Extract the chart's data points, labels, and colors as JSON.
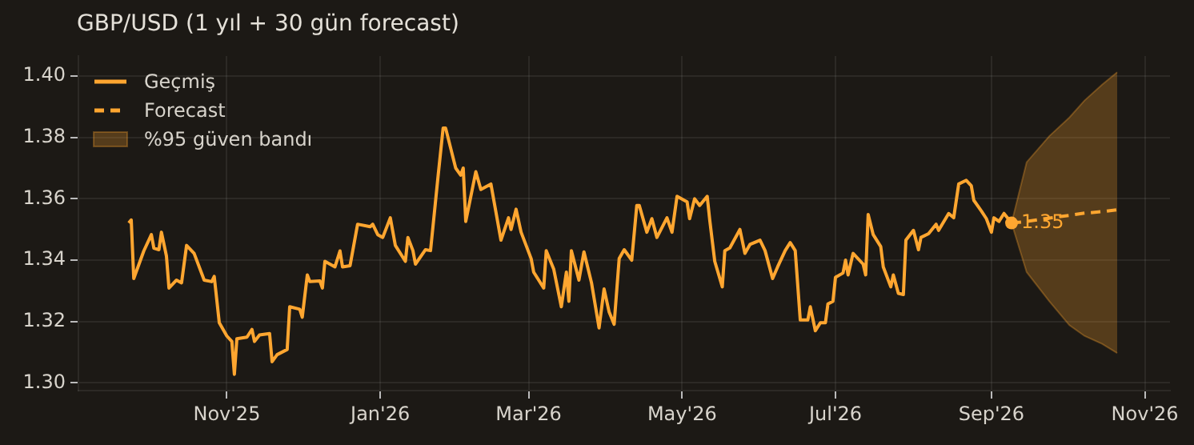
{
  "chart_data": {
    "type": "line",
    "title": "GBP/USD  (1 yıl + 30 gün forecast)",
    "grid": true,
    "legend": "top left",
    "xlim": [
      "2025-09-03",
      "2026-11-11"
    ],
    "ylim": [
      1.2975,
      1.4065
    ],
    "xticks": [
      {
        "value": "2025-11-01",
        "label": "Nov'25"
      },
      {
        "value": "2026-01-01",
        "label": "Jan'26"
      },
      {
        "value": "2026-03-01",
        "label": "Mar'26"
      },
      {
        "value": "2026-05-01",
        "label": "May'26"
      },
      {
        "value": "2026-07-01",
        "label": "Jul'26"
      },
      {
        "value": "2026-09-01",
        "label": "Sep'26"
      },
      {
        "value": "2026-11-01",
        "label": "Nov'26"
      }
    ],
    "yticks": [
      {
        "value": 1.3,
        "label": "1.30"
      },
      {
        "value": 1.32,
        "label": "1.32"
      },
      {
        "value": 1.34,
        "label": "1.34"
      },
      {
        "value": 1.36,
        "label": "1.36"
      },
      {
        "value": 1.38,
        "label": "1.38"
      },
      {
        "value": 1.4,
        "label": "1.40"
      }
    ],
    "annotations": [
      {
        "text": "1.35",
        "x": "2026-09-09",
        "y": 1.3521
      },
      "%95 güven bandı"
    ],
    "series": [
      {
        "name": "Geçmiş",
        "color": "#ffa630",
        "line_style": "solid",
        "x": [
          "2025-09-23",
          "2025-09-24",
          "2025-09-25",
          "2025-09-29",
          "2025-10-02",
          "2025-10-03",
          "2025-10-05",
          "2025-10-06",
          "2025-10-08",
          "2025-10-09",
          "2025-10-12",
          "2025-10-14",
          "2025-10-16",
          "2025-10-19",
          "2025-10-23",
          "2025-10-26",
          "2025-10-27",
          "2025-10-29",
          "2025-11-01",
          "2025-11-03",
          "2025-11-04",
          "2025-11-05",
          "2025-11-09",
          "2025-11-11",
          "2025-11-12",
          "2025-11-14",
          "2025-11-18",
          "2025-11-19",
          "2025-11-21",
          "2025-11-25",
          "2025-11-26",
          "2025-11-30",
          "2025-12-01",
          "2025-12-03",
          "2025-12-04",
          "2025-12-08",
          "2025-12-09",
          "2025-12-10",
          "2025-12-14",
          "2025-12-16",
          "2025-12-17",
          "2025-12-20",
          "2025-12-23",
          "2025-12-28",
          "2025-12-29",
          "2025-12-31",
          "2026-01-02",
          "2026-01-05",
          "2026-01-07",
          "2026-01-11",
          "2026-01-12",
          "2026-01-14",
          "2026-01-15",
          "2026-01-19",
          "2026-01-21",
          "2026-01-24",
          "2026-01-26",
          "2026-01-27",
          "2026-01-31",
          "2026-02-02",
          "2026-02-03",
          "2026-02-04",
          "2026-02-08",
          "2026-02-10",
          "2026-02-14",
          "2026-02-18",
          "2026-02-21",
          "2026-02-22",
          "2026-02-24",
          "2026-02-26",
          "2026-03-02",
          "2026-03-03",
          "2026-03-07",
          "2026-03-08",
          "2026-03-11",
          "2026-03-14",
          "2026-03-16",
          "2026-03-17",
          "2026-03-18",
          "2026-03-21",
          "2026-03-23",
          "2026-03-26",
          "2026-03-29",
          "2026-03-31",
          "2026-04-02",
          "2026-04-04",
          "2026-04-06",
          "2026-04-08",
          "2026-04-11",
          "2026-04-13",
          "2026-04-14",
          "2026-04-17",
          "2026-04-19",
          "2026-04-21",
          "2026-04-25",
          "2026-04-27",
          "2026-04-29",
          "2026-05-03",
          "2026-05-04",
          "2026-05-06",
          "2026-05-08",
          "2026-05-11",
          "2026-05-12",
          "2026-05-14",
          "2026-05-17",
          "2026-05-18",
          "2026-05-20",
          "2026-05-24",
          "2026-05-26",
          "2026-05-28",
          "2026-06-01",
          "2026-06-03",
          "2026-06-06",
          "2026-06-08",
          "2026-06-11",
          "2026-06-13",
          "2026-06-15",
          "2026-06-17",
          "2026-06-20",
          "2026-06-21",
          "2026-06-23",
          "2026-06-25",
          "2026-06-27",
          "2026-06-28",
          "2026-06-30",
          "2026-07-01",
          "2026-07-04",
          "2026-07-05",
          "2026-07-06",
          "2026-07-08",
          "2026-07-12",
          "2026-07-13",
          "2026-07-14",
          "2026-07-16",
          "2026-07-19",
          "2026-07-20",
          "2026-07-23",
          "2026-07-24",
          "2026-07-26",
          "2026-07-28",
          "2026-07-29",
          "2026-08-01",
          "2026-08-03",
          "2026-08-04",
          "2026-08-07",
          "2026-08-10",
          "2026-08-11",
          "2026-08-15",
          "2026-08-17",
          "2026-08-19",
          "2026-08-22",
          "2026-08-24",
          "2026-08-25",
          "2026-08-28",
          "2026-08-30",
          "2026-09-01",
          "2026-09-02",
          "2026-09-04",
          "2026-09-06",
          "2026-09-09"
        ],
        "values": [
          1.3521,
          1.3531,
          1.334,
          1.343,
          1.3483,
          1.3439,
          1.3434,
          1.3491,
          1.3413,
          1.3309,
          1.3335,
          1.3326,
          1.3448,
          1.3422,
          1.3335,
          1.333,
          1.3347,
          1.3196,
          1.3153,
          1.3135,
          1.3028,
          1.3144,
          1.3149,
          1.3174,
          1.3135,
          1.3156,
          1.3161,
          1.3069,
          1.3092,
          1.3109,
          1.3248,
          1.324,
          1.3214,
          1.3352,
          1.333,
          1.3332,
          1.3309,
          1.3396,
          1.3378,
          1.343,
          1.3378,
          1.3382,
          1.3517,
          1.3509,
          1.3517,
          1.3483,
          1.3474,
          1.3538,
          1.3448,
          1.3396,
          1.3474,
          1.3431,
          1.3387,
          1.3434,
          1.3431,
          1.3674,
          1.383,
          1.383,
          1.37,
          1.3677,
          1.37,
          1.3526,
          1.3688,
          1.363,
          1.3648,
          1.3465,
          1.3538,
          1.35,
          1.3566,
          1.3491,
          1.3405,
          1.3361,
          1.3309,
          1.3431,
          1.337,
          1.3248,
          1.3361,
          1.3266,
          1.3431,
          1.3335,
          1.3427,
          1.3326,
          1.3179,
          1.3306,
          1.3231,
          1.3191,
          1.3405,
          1.3434,
          1.34,
          1.3578,
          1.3578,
          1.3491,
          1.3535,
          1.3474,
          1.3538,
          1.3491,
          1.3608,
          1.359,
          1.3535,
          1.36,
          1.3578,
          1.3608,
          1.3531,
          1.3396,
          1.3313,
          1.3431,
          1.344,
          1.35,
          1.3422,
          1.3451,
          1.3465,
          1.3431,
          1.334,
          1.3378,
          1.3431,
          1.3457,
          1.3431,
          1.3205,
          1.3205,
          1.3248,
          1.317,
          1.3196,
          1.3196,
          1.3257,
          1.3266,
          1.3344,
          1.3358,
          1.34,
          1.3352,
          1.3422,
          1.3387,
          1.3352,
          1.3549,
          1.3483,
          1.3444,
          1.3378,
          1.3313,
          1.3352,
          1.3292,
          1.3288,
          1.3465,
          1.3497,
          1.3434,
          1.3474,
          1.3486,
          1.3517,
          1.3497,
          1.3552,
          1.3538,
          1.3648,
          1.366,
          1.3642,
          1.3595,
          1.356,
          1.3535,
          1.3491,
          1.3538,
          1.3526,
          1.3552,
          1.3521
        ]
      },
      {
        "name": "Forecast",
        "color": "#ffa630",
        "line_style": "dashed",
        "x": [
          "2026-09-09",
          "2026-09-15",
          "2026-09-24",
          "2026-10-02",
          "2026-10-08",
          "2026-10-15",
          "2026-10-21"
        ],
        "values": [
          1.3521,
          1.3526,
          1.3537,
          1.3546,
          1.3553,
          1.3558,
          1.3564
        ],
        "lower": [
          1.3521,
          1.3361,
          1.3266,
          1.3188,
          1.3153,
          1.3127,
          1.3097
        ],
        "upper": [
          1.3521,
          1.3719,
          1.3804,
          1.3865,
          1.392,
          1.3972,
          1.4012
        ]
      }
    ]
  }
}
